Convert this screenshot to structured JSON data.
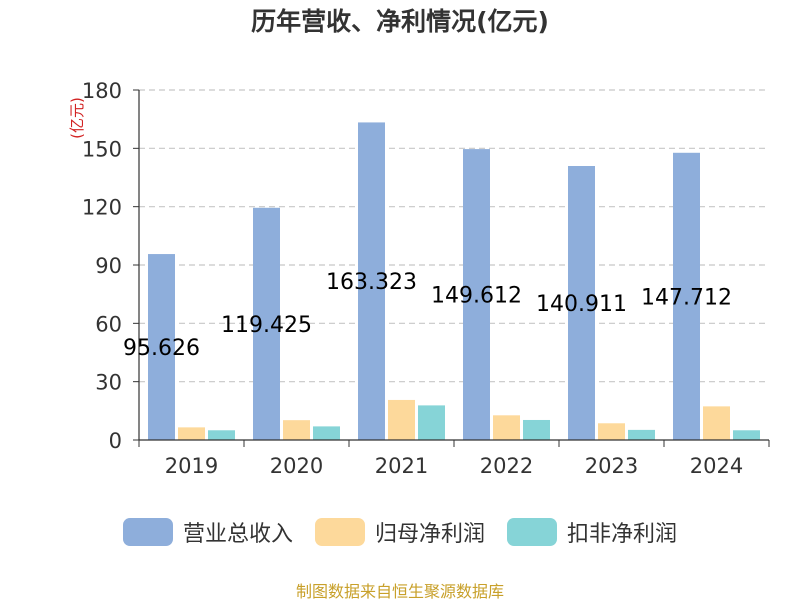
{
  "chart_data": {
    "type": "bar",
    "title": "历年营收、净利情况(亿元)",
    "ylabel": "(亿元)",
    "xlabel": "",
    "categories": [
      "2019",
      "2020",
      "2021",
      "2022",
      "2023",
      "2024"
    ],
    "ylim": [
      0,
      180
    ],
    "yticks": [
      0,
      30,
      60,
      90,
      120,
      150,
      180
    ],
    "grid": true,
    "legend_position": "bottom",
    "series": [
      {
        "name": "营业总收入",
        "color": "#8eaedb",
        "values": [
          95.626,
          119.425,
          163.323,
          149.612,
          140.911,
          147.712
        ],
        "labels": [
          "95.626",
          "119.425",
          "163.323",
          "149.612",
          "140.911",
          "147.712"
        ]
      },
      {
        "name": "归母净利润",
        "color": "#fdd99b",
        "values": [
          6.5,
          10.2,
          20.6,
          12.7,
          8.6,
          17.3
        ]
      },
      {
        "name": "扣非净利润",
        "color": "#86d4d7",
        "values": [
          5.0,
          7.0,
          17.8,
          10.3,
          5.2,
          5.0
        ]
      }
    ]
  },
  "source_note": "制图数据来自恒生聚源数据库"
}
